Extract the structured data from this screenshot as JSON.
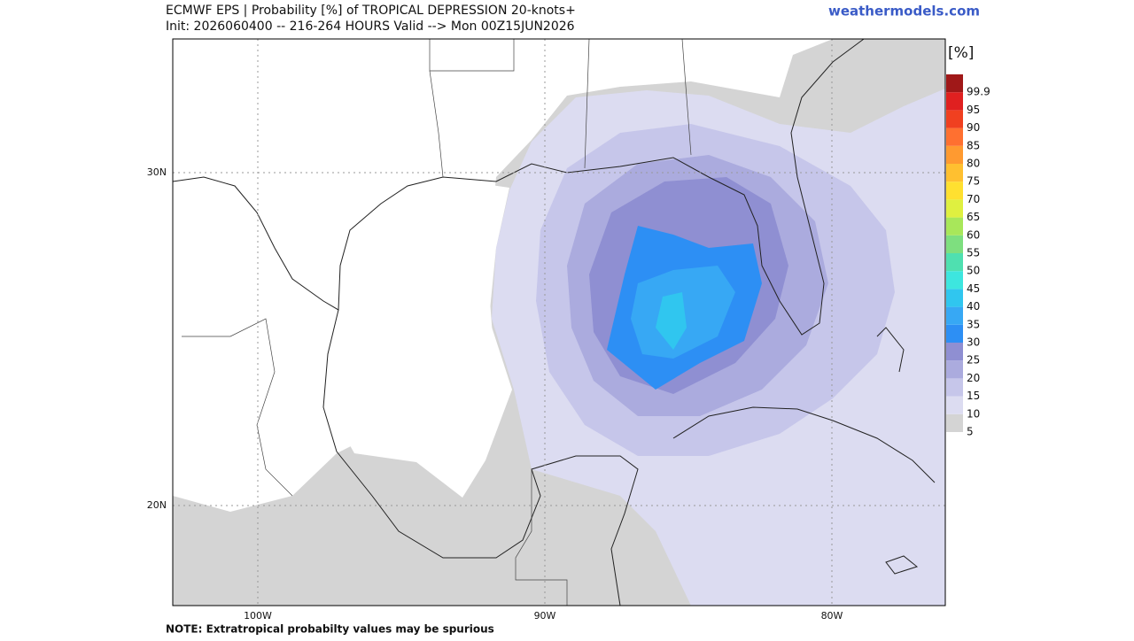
{
  "header": {
    "title": "ECMWF EPS | Probability [%] of TROPICAL DEPRESSION 20-knots+",
    "subtitle": "Init: 2026060400 -- 216-264 HOURS Valid --> Mon 00Z15JUN2026",
    "site": "weathermodels.com"
  },
  "map": {
    "lat_labels": [
      "30N",
      "20N"
    ],
    "lon_labels": [
      "100W",
      "90W",
      "80W"
    ]
  },
  "colorbar": {
    "unit": "[%]",
    "levels": [
      5,
      10,
      15,
      20,
      25,
      30,
      35,
      40,
      45,
      50,
      55,
      60,
      65,
      70,
      75,
      80,
      85,
      90,
      95,
      99.9
    ],
    "colors": [
      "#d4d4d4",
      "#dcdcf1",
      "#c6c6ea",
      "#ababde",
      "#8f8fd2",
      "#2d8ff4",
      "#37a8f4",
      "#30c6ef",
      "#3de6df",
      "#4fe0b0",
      "#7edf7f",
      "#a8e75a",
      "#dff040",
      "#ffe030",
      "#ffc030",
      "#ff9a30",
      "#ff7030",
      "#f04020",
      "#e02020",
      "#a01818"
    ]
  },
  "note": "NOTE: Extratropical probabilty values may be spurious"
}
